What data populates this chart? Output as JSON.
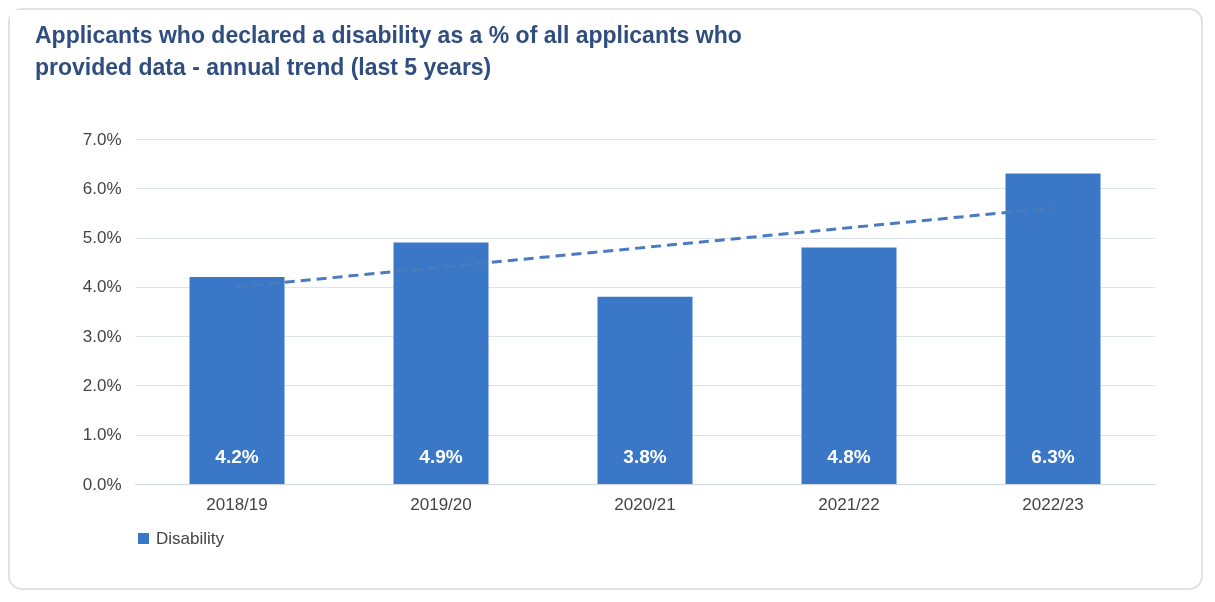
{
  "chart_data": {
    "type": "bar",
    "title": "Applicants who declared a disability as a % of all applicants who provided data - annual trend (last 5 years)",
    "categories": [
      "2018/19",
      "2019/20",
      "2020/21",
      "2021/22",
      "2022/23"
    ],
    "series": [
      {
        "name": "Disability",
        "color": "#3a77c6",
        "values": [
          4.2,
          4.9,
          3.8,
          4.8,
          6.3
        ],
        "value_labels": [
          "4.2%",
          "4.9%",
          "3.8%",
          "4.8%",
          "6.3%"
        ]
      },
      {
        "type": "line",
        "color": "#4a7bbf",
        "line_style": "dashed",
        "x": [
          "2018/19",
          "2019/20",
          "2020/21",
          "2021/22",
          "2022/23"
        ],
        "values": [
          4.0,
          4.4,
          4.8,
          5.2,
          5.6
        ]
      }
    ],
    "ylim": [
      0,
      7
    ],
    "yticks": [
      {
        "value": 0,
        "label": "0.0%"
      },
      {
        "value": 1,
        "label": "1.0%"
      },
      {
        "value": 2,
        "label": "2.0%"
      },
      {
        "value": 3,
        "label": "3.0%"
      },
      {
        "value": 4,
        "label": "4.0%"
      },
      {
        "value": 5,
        "label": "5.0%"
      },
      {
        "value": 6,
        "label": "6.0%"
      },
      {
        "value": 7,
        "label": "7.0%"
      }
    ],
    "grid": "y",
    "legend": "bottom"
  }
}
